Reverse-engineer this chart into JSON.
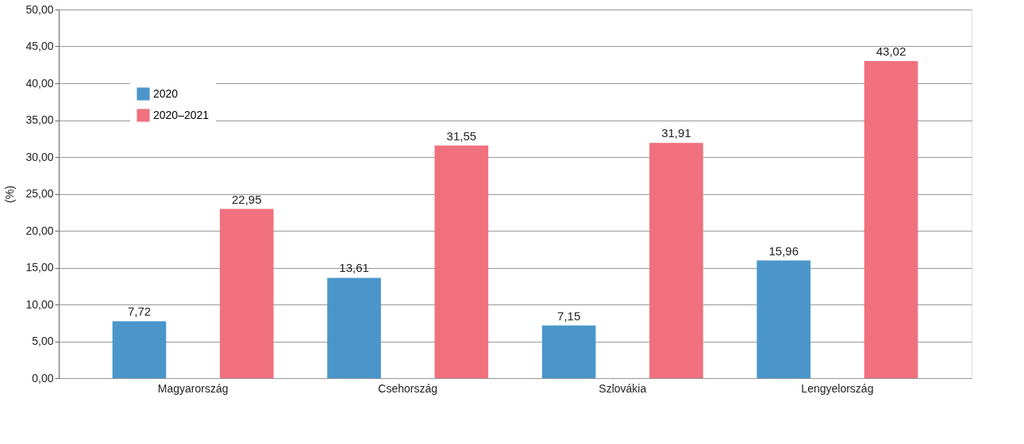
{
  "chart_data": {
    "type": "bar",
    "ylabel": "(%)",
    "categories": [
      "Magyarország",
      "Csehország",
      "Szlovákia",
      "Lengyelország"
    ],
    "series": [
      {
        "name": "2020",
        "color": "#4a96ca",
        "values": [
          7.72,
          13.61,
          7.15,
          15.96
        ],
        "value_labels": [
          "7,72",
          "13,61",
          "7,15",
          "15,96"
        ]
      },
      {
        "name": "2020–2021",
        "color": "#f0707e",
        "values": [
          22.95,
          31.55,
          31.91,
          43.02
        ],
        "value_labels": [
          "22,95",
          "31,55",
          "31,91",
          "43,02"
        ]
      }
    ],
    "ylim": [
      0,
      50
    ],
    "yticks": [
      {
        "value": 0,
        "label": "0,00"
      },
      {
        "value": 5,
        "label": "5,00"
      },
      {
        "value": 10,
        "label": "10,00"
      },
      {
        "value": 15,
        "label": "15,00"
      },
      {
        "value": 20,
        "label": "20,00"
      },
      {
        "value": 25,
        "label": "25,00"
      },
      {
        "value": 30,
        "label": "30,00"
      },
      {
        "value": 35,
        "label": "35,00"
      },
      {
        "value": 40,
        "label": "40,00"
      },
      {
        "value": 45,
        "label": "45,00"
      },
      {
        "value": 50,
        "label": "50,00"
      }
    ],
    "grid": "y",
    "legend": "top left"
  }
}
